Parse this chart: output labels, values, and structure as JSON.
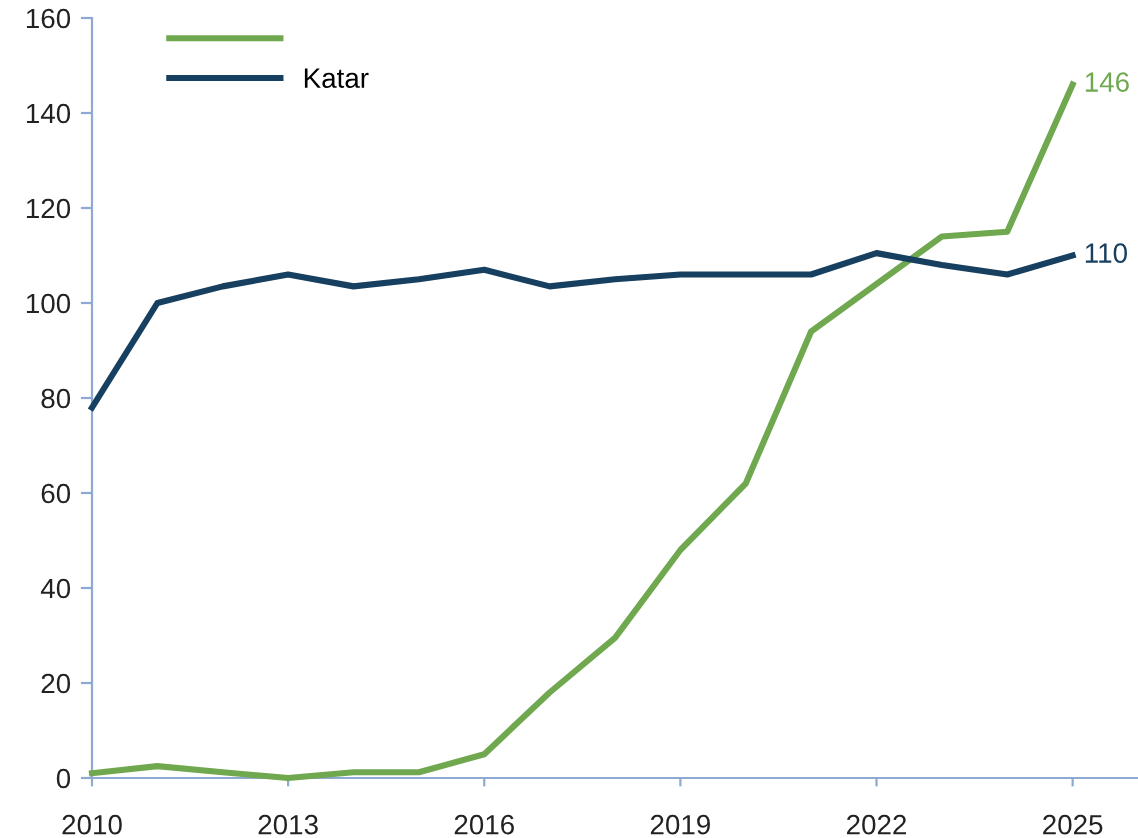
{
  "chart_data": {
    "type": "line",
    "x": [
      2010,
      2011,
      2012,
      2013,
      2014,
      2015,
      2016,
      2017,
      2018,
      2019,
      2020,
      2021,
      2022,
      2023,
      2024,
      2025
    ],
    "series": [
      {
        "color": "#70a84f",
        "values": [
          1,
          2.5,
          1.2,
          0,
          1.2,
          1.2,
          5,
          18,
          29.5,
          48,
          62,
          94,
          104,
          114,
          115,
          146
        ],
        "value_labels": [
          null,
          null,
          null,
          null,
          null,
          null,
          null,
          null,
          null,
          null,
          null,
          null,
          null,
          null,
          null,
          "146"
        ]
      },
      {
        "name": "Katar",
        "color": "#173f5f",
        "values": [
          78,
          100,
          103.5,
          106,
          103.5,
          105,
          107,
          103.5,
          105,
          106,
          106,
          106,
          110.5,
          108,
          106,
          110
        ],
        "value_labels": [
          null,
          null,
          null,
          null,
          null,
          null,
          null,
          null,
          null,
          null,
          null,
          null,
          null,
          null,
          null,
          "110"
        ]
      }
    ],
    "xlim": [
      2010,
      2026
    ],
    "xticks": [
      2010,
      2013,
      2016,
      2019,
      2022,
      2025
    ],
    "ylim": [
      0,
      160
    ],
    "yticks": [
      0,
      20,
      40,
      60,
      80,
      100,
      120,
      140,
      160
    ],
    "grid": false,
    "legend": "top left",
    "marker": "none",
    "line_style": "solid"
  }
}
